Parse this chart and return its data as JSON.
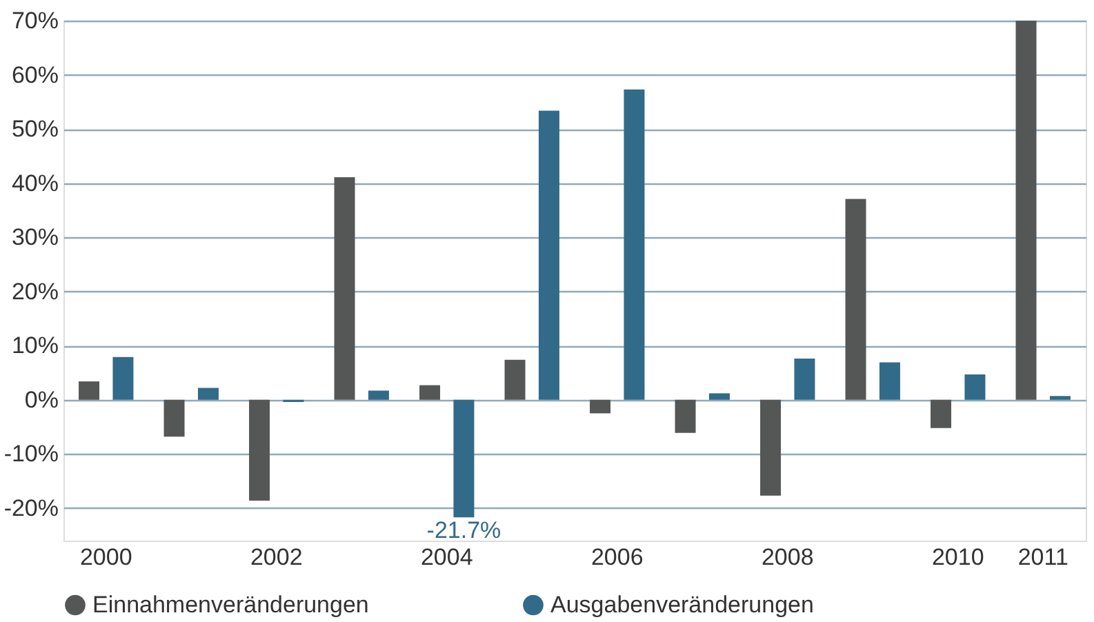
{
  "chart_data": {
    "type": "bar",
    "categories": [
      "2000",
      null,
      "2002",
      null,
      "2004",
      null,
      "2006",
      null,
      "2008",
      null,
      "2010",
      "2011"
    ],
    "series": [
      {
        "name": "Einnahmenveränderungen",
        "color": "#555756",
        "values": [
          3.4,
          -6.8,
          -18.6,
          41.1,
          2.7,
          7.4,
          -2.5,
          -6.1,
          -17.7,
          37.1,
          -5.2,
          70
        ]
      },
      {
        "name": "Ausgabenveränderungen",
        "color": "#326a89",
        "values": [
          7.9,
          2.2,
          -0.4,
          1.7,
          -21.7,
          53.4,
          57.3,
          1.2,
          7.6,
          6.9,
          4.7,
          0.7
        ],
        "value_labels": [
          null,
          null,
          null,
          null,
          "-21.7%",
          null,
          null,
          null,
          null,
          null,
          null,
          null
        ]
      }
    ],
    "ylim": [
      -26,
      70
    ],
    "yticks": [
      {
        "value": -20,
        "label": "-20%"
      },
      {
        "value": -10,
        "label": "-10%"
      },
      {
        "value": 0,
        "label": "0%"
      },
      {
        "value": 10,
        "label": "10%"
      },
      {
        "value": 20,
        "label": "20%"
      },
      {
        "value": 30,
        "label": "30%"
      },
      {
        "value": 40,
        "label": "40%"
      },
      {
        "value": 50,
        "label": "50%"
      },
      {
        "value": 60,
        "label": "60%"
      },
      {
        "value": 70,
        "label": "70%"
      }
    ],
    "grid": "y",
    "legend": "bottom"
  }
}
